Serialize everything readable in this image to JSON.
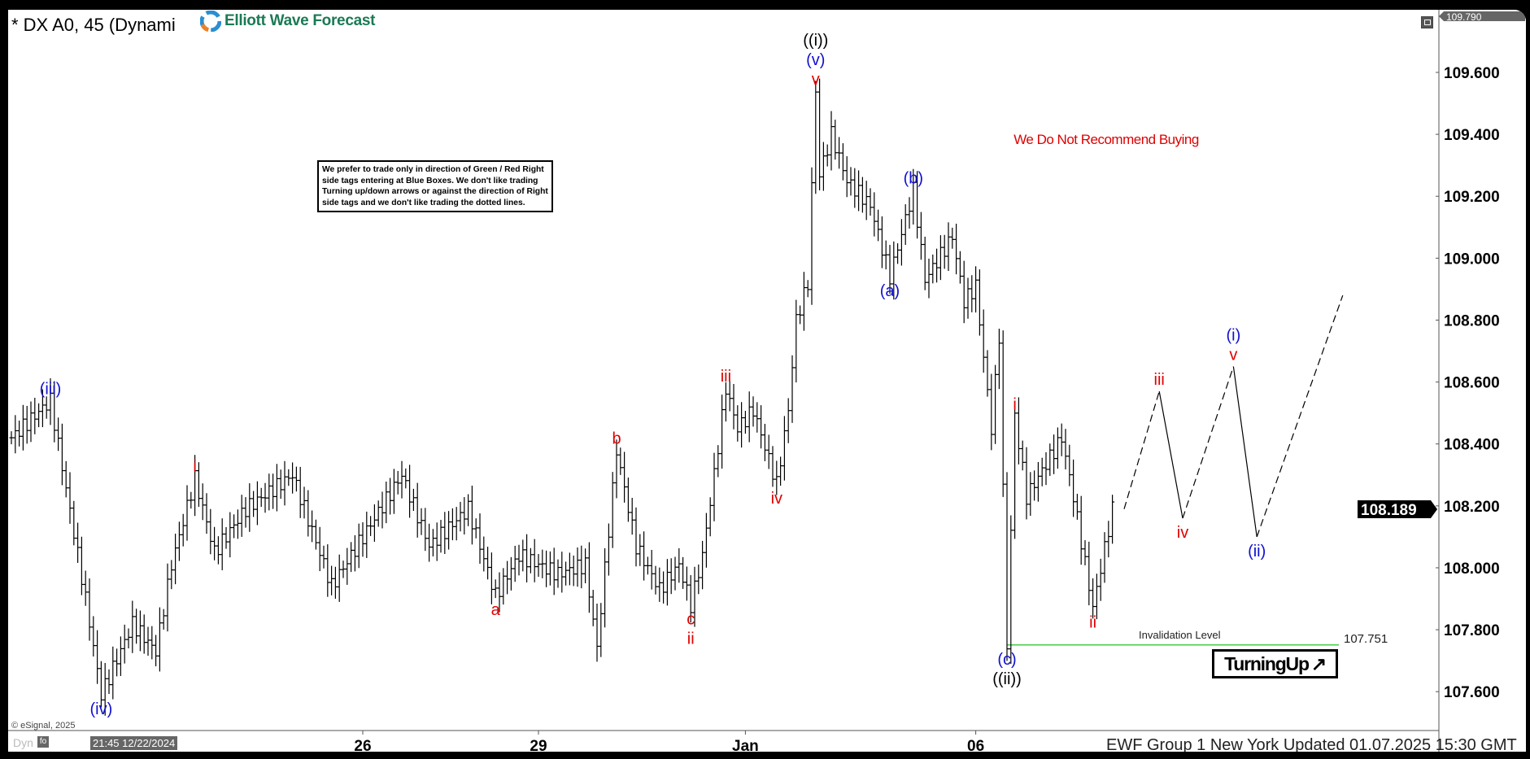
{
  "header": {
    "title": "* DX A0, 45 (Dynami",
    "logo_text": "Elliott Wave Forecast",
    "restore_icon": "window-restore-icon"
  },
  "info_box": {
    "text": "We prefer to trade only in direction of Green / Red Right side tags entering at Blue Boxes. We don't like trading Turning up/down arrows or against the direction of Right side tags and we don't like trading the dotted lines."
  },
  "warning": "We Do Not Recommend Buying",
  "invalidation": {
    "label": "Invalidation Level",
    "value": "107.751",
    "price": 107.751,
    "color": "#44cc44"
  },
  "turning": {
    "label": "TurningUp",
    "arrow": "↗"
  },
  "footer": {
    "copyright": "© eSignal, 2025",
    "dyn": "Dyn",
    "fo_icon": "fo",
    "cursor_time": "21:45 12/22/2024",
    "updated": "EWF Group 1 New York Updated 01.07.2025 15:30 GMT"
  },
  "chart_data": {
    "type": "ohlc-bar",
    "symbol": "DX A0",
    "interval": "45",
    "ylim": [
      107.5,
      109.82
    ],
    "yticks": [
      "107.600",
      "107.800",
      "108.000",
      "108.200",
      "108.400",
      "108.600",
      "108.800",
      "109.000",
      "109.200",
      "109.400",
      "109.600"
    ],
    "high_tag": "109.790",
    "last_price": "108.189",
    "xticks": [
      {
        "label": "26",
        "bar": 90
      },
      {
        "label": "29",
        "bar": 135
      },
      {
        "label": "Jan",
        "bar": 188
      },
      {
        "label": "06",
        "bar": 247
      }
    ],
    "colors": {
      "red": "#e00000",
      "blue": "#1010d0",
      "black": "#000000"
    },
    "swing_path": [
      {
        "bar": 0,
        "price": 108.42
      },
      {
        "bar": 10,
        "price": 108.54,
        "labels": [
          {
            "t": "(iii)",
            "c": "blue"
          }
        ],
        "pos": "above"
      },
      {
        "bar": 19,
        "price": 107.9
      },
      {
        "bar": 23,
        "price": 107.59,
        "labels": [
          {
            "t": "(iv)",
            "c": "blue"
          }
        ],
        "pos": "below"
      },
      {
        "bar": 31,
        "price": 107.82
      },
      {
        "bar": 37,
        "price": 107.73
      },
      {
        "bar": 41,
        "price": 108.01
      },
      {
        "bar": 47,
        "price": 108.29,
        "labels": [
          {
            "t": "i",
            "c": "red"
          }
        ],
        "pos": "above"
      },
      {
        "bar": 52,
        "price": 108.05
      },
      {
        "bar": 60,
        "price": 108.19
      },
      {
        "bar": 72,
        "price": 108.3
      },
      {
        "bar": 82,
        "price": 107.94
      },
      {
        "bar": 100,
        "price": 108.3
      },
      {
        "bar": 107,
        "price": 108.07
      },
      {
        "bar": 117,
        "price": 108.19
      },
      {
        "bar": 124,
        "price": 107.91,
        "labels": [
          {
            "t": "a",
            "c": "red"
          }
        ],
        "pos": "below"
      },
      {
        "bar": 130,
        "price": 108.04
      },
      {
        "bar": 140,
        "price": 107.98
      },
      {
        "bar": 147,
        "price": 108.01
      },
      {
        "bar": 150,
        "price": 107.74
      },
      {
        "bar": 155,
        "price": 108.38,
        "labels": [
          {
            "t": "b",
            "c": "red"
          }
        ],
        "pos": "above"
      },
      {
        "bar": 160,
        "price": 108.07
      },
      {
        "bar": 166,
        "price": 107.93
      },
      {
        "bar": 171,
        "price": 108.01
      },
      {
        "bar": 174,
        "price": 107.88,
        "labels": [
          {
            "t": "c",
            "c": "red"
          },
          {
            "t": "ii",
            "c": "red"
          }
        ],
        "pos": "below"
      },
      {
        "bar": 177,
        "price": 108.04
      },
      {
        "bar": 180,
        "price": 108.3
      },
      {
        "bar": 183,
        "price": 108.58,
        "labels": [
          {
            "t": "iii",
            "c": "red"
          }
        ],
        "pos": "above"
      },
      {
        "bar": 186,
        "price": 108.45
      },
      {
        "bar": 190,
        "price": 108.51
      },
      {
        "bar": 196,
        "price": 108.27,
        "labels": [
          {
            "t": "iv",
            "c": "red"
          }
        ],
        "pos": "below"
      },
      {
        "bar": 199,
        "price": 108.51
      },
      {
        "bar": 201,
        "price": 108.8
      },
      {
        "bar": 204,
        "price": 108.92
      },
      {
        "bar": 206,
        "price": 109.54,
        "labels": [
          {
            "t": "((i))",
            "c": "black"
          },
          {
            "t": "(v)",
            "c": "blue"
          },
          {
            "t": "v",
            "c": "red"
          }
        ],
        "pos": "above"
      },
      {
        "bar": 207,
        "price": 109.27
      },
      {
        "bar": 210,
        "price": 109.4
      },
      {
        "bar": 214,
        "price": 109.25
      },
      {
        "bar": 220,
        "price": 109.17
      },
      {
        "bar": 225,
        "price": 108.94,
        "labels": [
          {
            "t": "(a)",
            "c": "blue"
          }
        ],
        "pos": "below"
      },
      {
        "bar": 231,
        "price": 109.22,
        "labels": [
          {
            "t": "(b)",
            "c": "blue"
          }
        ],
        "pos": "above"
      },
      {
        "bar": 234,
        "price": 108.93
      },
      {
        "bar": 241,
        "price": 109.07
      },
      {
        "bar": 244,
        "price": 108.86
      },
      {
        "bar": 247,
        "price": 108.91
      },
      {
        "bar": 251,
        "price": 108.45
      },
      {
        "bar": 253,
        "price": 108.75
      },
      {
        "bar": 255,
        "price": 107.75,
        "labels": [
          {
            "t": "(c)",
            "c": "blue"
          },
          {
            "t": "((ii))",
            "c": "black"
          }
        ],
        "pos": "below"
      },
      {
        "bar": 257,
        "price": 108.49,
        "labels": [
          {
            "t": "i",
            "c": "red"
          }
        ],
        "pos": "above"
      },
      {
        "bar": 260,
        "price": 108.23
      },
      {
        "bar": 269,
        "price": 108.42
      },
      {
        "bar": 272,
        "price": 108.23
      },
      {
        "bar": 277,
        "price": 107.87,
        "labels": [
          {
            "t": "ii",
            "c": "red"
          }
        ],
        "pos": "below"
      },
      {
        "bar": 282,
        "price": 108.19
      }
    ],
    "projection": [
      {
        "bar": 285,
        "price": 108.19
      },
      {
        "bar": 294,
        "price": 108.57,
        "labels": [
          {
            "t": "iii",
            "c": "red"
          }
        ],
        "pos": "above",
        "style": "dashed"
      },
      {
        "bar": 300,
        "price": 108.16,
        "labels": [
          {
            "t": "iv",
            "c": "red"
          }
        ],
        "pos": "below",
        "style": "solid"
      },
      {
        "bar": 313,
        "price": 108.65,
        "labels": [
          {
            "t": "(i)",
            "c": "blue"
          },
          {
            "t": "v",
            "c": "red"
          }
        ],
        "pos": "above",
        "style": "dashed"
      },
      {
        "bar": 319,
        "price": 108.1,
        "labels": [
          {
            "t": "(ii)",
            "c": "blue"
          }
        ],
        "pos": "below",
        "style": "solid"
      },
      {
        "bar": 341,
        "price": 108.88,
        "style": "dashed"
      }
    ]
  }
}
